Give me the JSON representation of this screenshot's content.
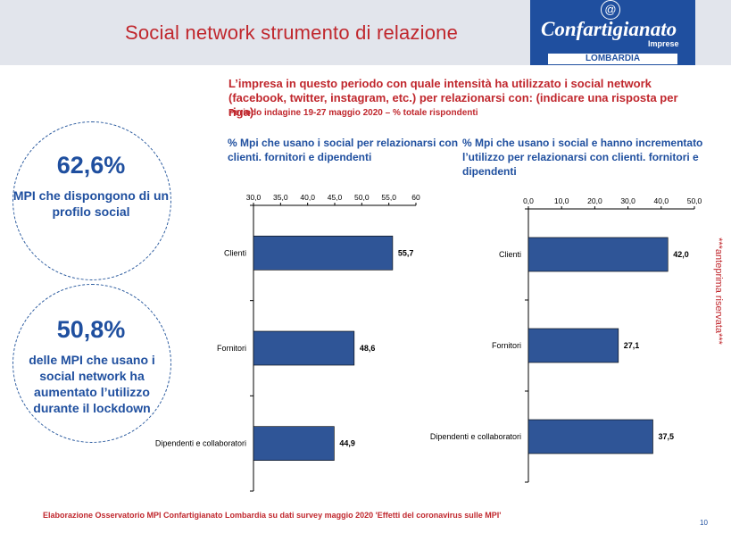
{
  "header": {
    "title": "Social network strumento di relazione",
    "logo_name": "Confartigianato",
    "logo_sub": "Imprese",
    "logo_region": "LOMBARDIA",
    "logo_mark": "@",
    "brand_color": "#1f4f9f",
    "title_color": "#c0272d"
  },
  "question": {
    "text": "L’impresa in questo periodo con quale intensità ha utilizzato i social network (facebook, twitter, instagram, etc.) per relazionarsi con: (indicare una risposta per riga)",
    "period": "Periodo indagine 19-27 maggio 2020 – % totale rispondenti"
  },
  "highlights": [
    {
      "value": "62,6%",
      "description": "MPI che dispongono di un profilo social"
    },
    {
      "value": "50,8%",
      "description": "delle MPI  che usano i social network ha aumentato l’utilizzo durante il lockdown"
    }
  ],
  "chart_data": [
    {
      "type": "bar",
      "orientation": "horizontal",
      "title": "% Mpi che usano i social per relazionarsi con clienti. fornitori e dipendenti",
      "categories": [
        "Clienti",
        "Fornitori",
        "Dipendenti e collaboratori"
      ],
      "values": [
        55.7,
        48.6,
        44.9
      ],
      "value_labels": [
        "55,7",
        "48,6",
        "44,9"
      ],
      "xlim": [
        30,
        60
      ],
      "ticks": [
        "30,0",
        "35,0",
        "40,0",
        "45,0",
        "50,0",
        "55,0",
        "60"
      ],
      "tick_values": [
        30,
        35,
        40,
        45,
        50,
        55,
        60
      ],
      "axis_position": "top",
      "grid": false,
      "bar_color": "#2f5597"
    },
    {
      "type": "bar",
      "orientation": "horizontal",
      "title": "% Mpi che usano i social e  hanno incrementato l’utilizzo per relazionarsi con clienti. fornitori e dipendenti",
      "categories": [
        "Clienti",
        "Fornitori",
        "Dipendenti e collaboratori"
      ],
      "values": [
        42.0,
        27.1,
        37.5
      ],
      "value_labels": [
        "42,0",
        "27,1",
        "37,5"
      ],
      "xlim": [
        0,
        50
      ],
      "ticks": [
        "0,0",
        "10,0",
        "20,0",
        "30,0",
        "40,0",
        "50,0"
      ],
      "tick_values": [
        0,
        10,
        20,
        30,
        40,
        50
      ],
      "axis_position": "top",
      "grid": false,
      "bar_color": "#2f5597"
    }
  ],
  "side_note": "***anteprima riservata***",
  "footer": {
    "source": "Elaborazione Osservatorio MPI Confartigianato Lombardia su dati survey maggio 2020  'Effetti del coronavirus sulle MPI'",
    "page_number": "10"
  }
}
